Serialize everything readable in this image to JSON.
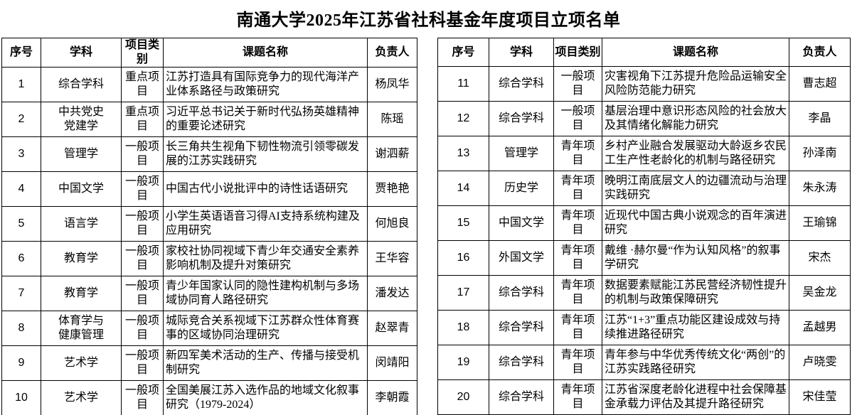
{
  "title": "南通大学2025年江苏省社科基金年度项目立项名单",
  "headers": {
    "no": "序号",
    "discipline": "学科",
    "category": "项目类别",
    "title": "课题名称",
    "leader": "负责人"
  },
  "tables": [
    {
      "rows": [
        {
          "no": "1",
          "discipline": "综合学科",
          "category": "重点项目",
          "title": "江苏打造具有国际竞争力的现代海洋产业体系路径与政策研究",
          "leader": "杨凤华"
        },
        {
          "no": "2",
          "discipline": "中共党史\n党建学",
          "category": "重点项目",
          "title": "习近平总书记关于新时代弘扬英雄精神的重要论述研究",
          "leader": "陈瑶"
        },
        {
          "no": "3",
          "discipline": "管理学",
          "category": "一般项目",
          "title": "长三角共生视角下韧性物流引领零碳发展的江苏实践研究",
          "leader": "谢泗薪"
        },
        {
          "no": "4",
          "discipline": "中国文学",
          "category": "一般项目",
          "title": "中国古代小说批评中的诗性话语研究",
          "leader": "贾艳艳"
        },
        {
          "no": "5",
          "discipline": "语言学",
          "category": "一般项目",
          "title": "小学生英语语音习得AI支持系统构建及应用研究",
          "leader": "何旭良"
        },
        {
          "no": "6",
          "discipline": "教育学",
          "category": "一般项目",
          "title": "家校社协同视域下青少年交通安全素养影响机制及提升对策研究",
          "leader": "王华容"
        },
        {
          "no": "7",
          "discipline": "教育学",
          "category": "一般项目",
          "title": "青少年国家认同的隐性建构机制与多场域协同育人路径研究",
          "leader": "潘发达"
        },
        {
          "no": "8",
          "discipline": "体育学与\n健康管理",
          "category": "一般项目",
          "title": "城际竞合关系视域下江苏群众性体育赛事的区域协同治理研究",
          "leader": "赵翠青"
        },
        {
          "no": "9",
          "discipline": "艺术学",
          "category": "一般项目",
          "title": "新四军美术活动的生产、传播与接受机制研究",
          "leader": "闵靖阳"
        },
        {
          "no": "10",
          "discipline": "艺术学",
          "category": "一般项目",
          "title": "全国美展江苏入选作品的地域文化叙事研究（1979-2024）",
          "leader": "李朝霞"
        }
      ]
    },
    {
      "rows": [
        {
          "no": "11",
          "discipline": "综合学科",
          "category": "一般项目",
          "title": "灾害视角下江苏提升危险品运输安全风险防范能力研究",
          "leader": "曹志超"
        },
        {
          "no": "12",
          "discipline": "综合学科",
          "category": "一般项目",
          "title": "基层治理中意识形态风险的社会放大及其情绪化解能力研究",
          "leader": "李晶"
        },
        {
          "no": "13",
          "discipline": "管理学",
          "category": "青年项目",
          "title": "乡村产业融合发展驱动大龄返乡农民工生产性老龄化的机制与路径研究",
          "leader": "孙泽南"
        },
        {
          "no": "14",
          "discipline": "历史学",
          "category": "青年项目",
          "title": "晚明江南底层文人的边疆流动与治理实践研究",
          "leader": "朱永涛"
        },
        {
          "no": "15",
          "discipline": "中国文学",
          "category": "青年项目",
          "title": "近现代中国古典小说观念的百年演进研究",
          "leader": "王瑜锦"
        },
        {
          "no": "16",
          "discipline": "外国文学",
          "category": "青年项目",
          "title": "戴维 ·赫尔曼“作为认知风格”的叙事学研究",
          "leader": "宋杰"
        },
        {
          "no": "17",
          "discipline": "综合学科",
          "category": "青年项目",
          "title": "数据要素赋能江苏民营经济韧性提升的机制与政策保障研究",
          "leader": "吴金龙"
        },
        {
          "no": "18",
          "discipline": "综合学科",
          "category": "青年项目",
          "title": "江苏“1+3”重点功能区建设成效与持续推进路径研究",
          "leader": "孟越男"
        },
        {
          "no": "19",
          "discipline": "综合学科",
          "category": "青年项目",
          "title": "青年参与中华优秀传统文化“两创”的江苏实践路径研究",
          "leader": "卢晓雯"
        },
        {
          "no": "20",
          "discipline": "综合学科",
          "category": "青年项目",
          "title": "江苏省深度老龄化进程中社会保障基金承载力评估及其提升路径研究",
          "leader": "宋佳莹"
        }
      ]
    }
  ]
}
